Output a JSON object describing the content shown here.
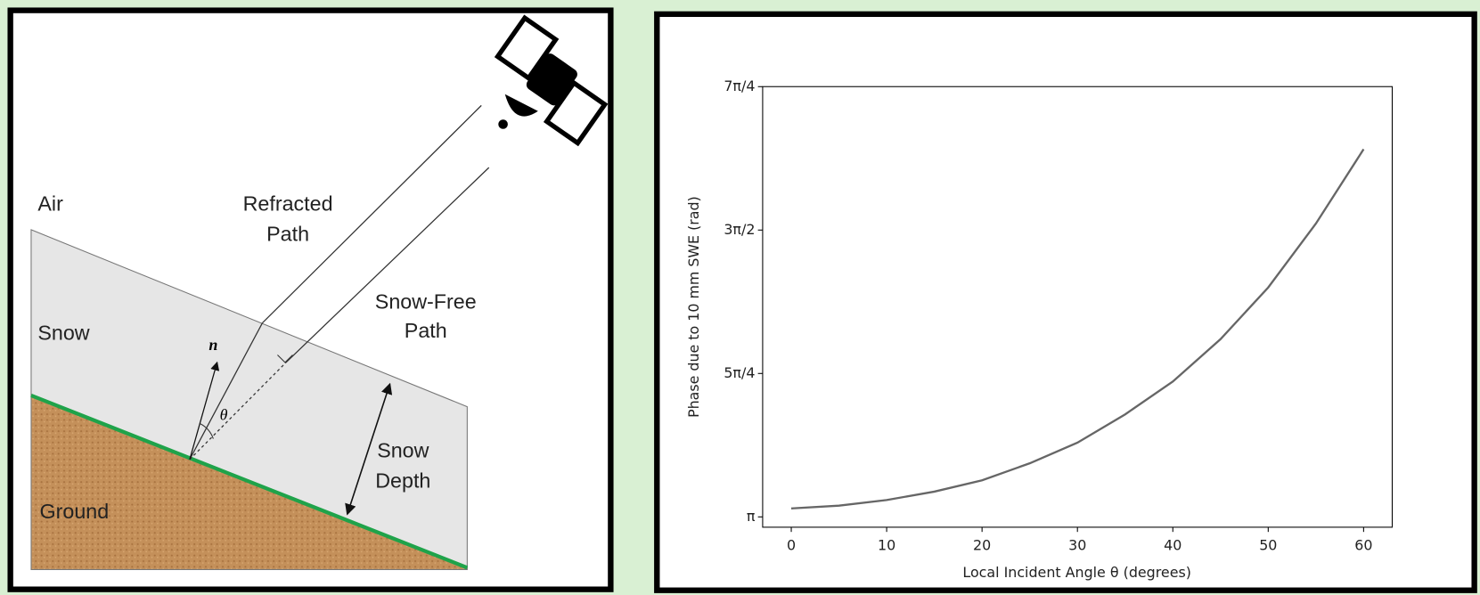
{
  "diagram": {
    "labels": {
      "air": "Air",
      "snow": "Snow",
      "ground": "Ground",
      "refracted": [
        "Refracted",
        "Path"
      ],
      "snow_free": [
        "Snow-Free",
        "Path"
      ],
      "snow_depth": [
        "Snow",
        "Depth"
      ],
      "normal": "n",
      "angle": "θ"
    }
  },
  "chart_data": {
    "type": "line",
    "xlabel": "Local Incident Angle θ (degrees)",
    "ylabel": "Phase due to 10 mm SWE (rad)",
    "x": [
      0,
      5,
      10,
      15,
      20,
      25,
      30,
      35,
      40,
      45,
      50,
      55,
      60
    ],
    "series": [
      {
        "color": "#666666",
        "values": [
          3.188,
          3.203,
          3.234,
          3.28,
          3.342,
          3.435,
          3.548,
          3.703,
          3.883,
          4.115,
          4.398,
          4.748,
          5.155
        ]
      }
    ],
    "xlim": [
      -3,
      63
    ],
    "xticks": [
      0,
      10,
      20,
      30,
      40,
      50,
      60
    ],
    "ylim": [
      3.085,
      5.498
    ],
    "yticks": [
      {
        "value": 3.1416,
        "label": "π"
      },
      {
        "value": 3.927,
        "label": "5π/4"
      },
      {
        "value": 4.7124,
        "label": "3π/2"
      },
      {
        "value": 5.4978,
        "label": "7π/4"
      }
    ]
  }
}
